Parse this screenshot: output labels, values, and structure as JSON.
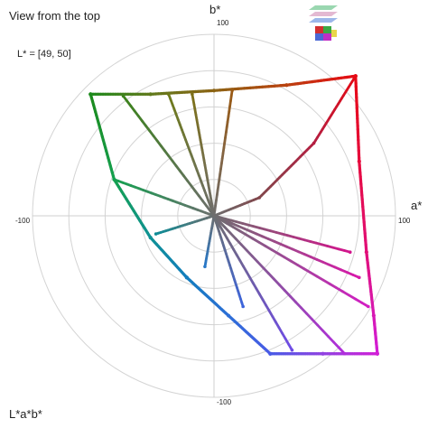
{
  "view_title": "View from the top",
  "lightness_range": "L* = [49, 50]",
  "color_space": "L*a*b*",
  "colors": {
    "grid": "#d4d4d4",
    "axis": "#cfcfcf",
    "tick_text": "#333333"
  },
  "thumbnail": {
    "name": "view-thumbnail-icon"
  },
  "chart_data": {
    "type": "scatter",
    "title": "View from the top",
    "subtitle": "L* = [49, 50]",
    "coordinate_system": "polar",
    "xlabel": "a*",
    "ylabel": "b*",
    "xlim": [
      -100,
      100
    ],
    "ylim": [
      -100,
      100
    ],
    "grid": true,
    "grid_rings": [
      20,
      40,
      60,
      80,
      100
    ],
    "tick_labels": {
      "a_neg": "-100",
      "a_pos": "100",
      "b_pos": "100",
      "b_neg": "-100"
    },
    "gamut_vertices": [
      {
        "name": "green",
        "a": -68,
        "b": 67,
        "color": "#1c8a1c"
      },
      {
        "name": "red",
        "a": 78,
        "b": 77,
        "color": "#e60a14"
      },
      {
        "name": "magenta",
        "a": 90,
        "b": -76,
        "color": "#d21ed7"
      },
      {
        "name": "blue",
        "a": 31,
        "b": -76,
        "color": "#4a5ae6"
      },
      {
        "name": "cyan",
        "a": -15,
        "b": -34,
        "color": "#137dbe"
      }
    ],
    "series": [
      {
        "points": [
          {
            "a": -68,
            "b": 67,
            "color": "#1c8a1c"
          },
          {
            "a": -35,
            "b": 67,
            "color": "#5f7a1c"
          },
          {
            "a": 0,
            "b": 69,
            "color": "#8c6414"
          },
          {
            "a": 40,
            "b": 72,
            "color": "#b9420f"
          },
          {
            "a": 78,
            "b": 77,
            "color": "#e60a14"
          }
        ]
      },
      {
        "points": [
          {
            "a": 78,
            "b": 77,
            "color": "#e60a14"
          },
          {
            "a": 80,
            "b": 30,
            "color": "#e60a3c"
          },
          {
            "a": 84,
            "b": -20,
            "color": "#e10f78"
          },
          {
            "a": 88,
            "b": -55,
            "color": "#d719b4"
          },
          {
            "a": 90,
            "b": -76,
            "color": "#d21ed7"
          }
        ]
      },
      {
        "points": [
          {
            "a": 90,
            "b": -76,
            "color": "#d21ed7"
          },
          {
            "a": 60,
            "b": -76,
            "color": "#9141e1"
          },
          {
            "a": 31,
            "b": -76,
            "color": "#4a5ae6"
          }
        ]
      },
      {
        "points": [
          {
            "a": 31,
            "b": -76,
            "color": "#4a5ae6"
          },
          {
            "a": 8,
            "b": -55,
            "color": "#2d6ed7"
          },
          {
            "a": -15,
            "b": -34,
            "color": "#137dbe"
          }
        ]
      },
      {
        "points": [
          {
            "a": -15,
            "b": -34,
            "color": "#137dbe"
          },
          {
            "a": -35,
            "b": -12,
            "color": "#0f9196"
          },
          {
            "a": -55,
            "b": 20,
            "color": "#14a050"
          },
          {
            "a": -68,
            "b": 67,
            "color": "#1c8a1c"
          }
        ]
      },
      {
        "points": [
          {
            "a": 78,
            "b": 77,
            "color": "#e60a14"
          },
          {
            "a": 55,
            "b": 40,
            "color": "#b41e41"
          },
          {
            "a": 25,
            "b": 10,
            "color": "#82464b"
          },
          {
            "a": 0,
            "b": 0,
            "color": "#6e6e6e"
          }
        ]
      },
      {
        "points": [
          {
            "a": 0,
            "b": 0,
            "color": "#6e6e6e"
          },
          {
            "a": -50,
            "b": 66,
            "color": "#3c821c"
          }
        ]
      },
      {
        "points": [
          {
            "a": 0,
            "b": 0,
            "color": "#6e6e6e"
          },
          {
            "a": -25,
            "b": 67,
            "color": "#6e7a1a"
          }
        ]
      },
      {
        "points": [
          {
            "a": 0,
            "b": 0,
            "color": "#6e6e6e"
          },
          {
            "a": -12,
            "b": 67,
            "color": "#7d7018"
          }
        ]
      },
      {
        "points": [
          {
            "a": 0,
            "b": 0,
            "color": "#6e6e6e"
          },
          {
            "a": 10,
            "b": 69,
            "color": "#9a5a14"
          }
        ]
      },
      {
        "points": [
          {
            "a": 0,
            "b": 0,
            "color": "#6e6e6e"
          },
          {
            "a": -55,
            "b": 20,
            "color": "#14a050"
          }
        ]
      },
      {
        "points": [
          {
            "a": 0,
            "b": 0,
            "color": "#6e6e6e"
          },
          {
            "a": -32,
            "b": -10,
            "color": "#0f8c96"
          }
        ]
      },
      {
        "points": [
          {
            "a": 0,
            "b": 0,
            "color": "#6e6e6e"
          },
          {
            "a": 75,
            "b": -20,
            "color": "#d2148c"
          }
        ]
      },
      {
        "points": [
          {
            "a": 0,
            "b": 0,
            "color": "#6e6e6e"
          },
          {
            "a": 80,
            "b": -34,
            "color": "#d719aa"
          }
        ]
      },
      {
        "points": [
          {
            "a": 0,
            "b": 0,
            "color": "#6e6e6e"
          },
          {
            "a": 85,
            "b": -50,
            "color": "#d21ec3"
          }
        ]
      },
      {
        "points": [
          {
            "a": 0,
            "b": 0,
            "color": "#6e6e6e"
          },
          {
            "a": 72,
            "b": -76,
            "color": "#b12ddc"
          }
        ]
      },
      {
        "points": [
          {
            "a": 0,
            "b": 0,
            "color": "#6e6e6e"
          },
          {
            "a": 43,
            "b": -74,
            "color": "#6e4be6"
          }
        ]
      },
      {
        "points": [
          {
            "a": 0,
            "b": 0,
            "color": "#6e6e6e"
          },
          {
            "a": 16,
            "b": -50,
            "color": "#3c64dc"
          }
        ]
      },
      {
        "points": [
          {
            "a": 0,
            "b": 0,
            "color": "#6e6e6e"
          },
          {
            "a": -5,
            "b": -28,
            "color": "#2878c8"
          }
        ]
      }
    ]
  }
}
